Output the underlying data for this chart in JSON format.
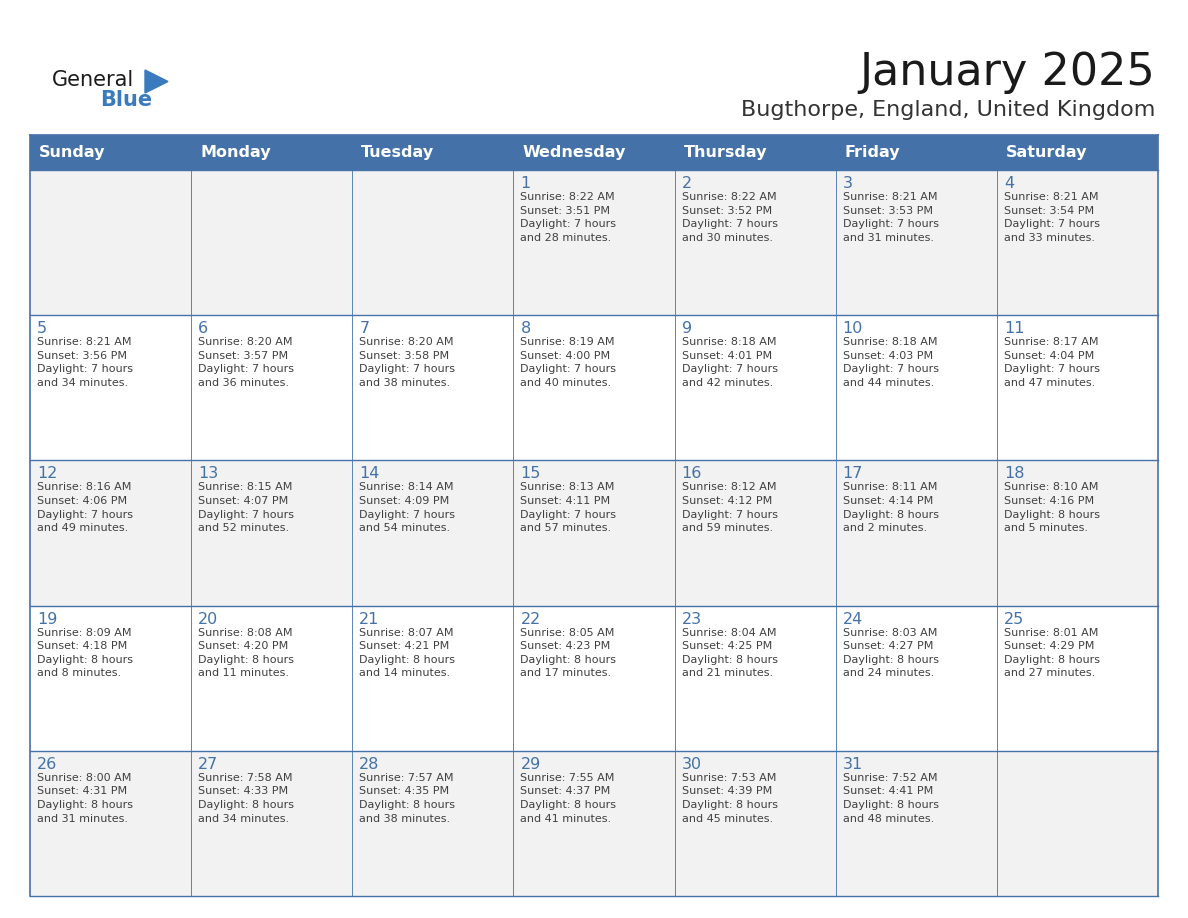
{
  "title": "January 2025",
  "subtitle": "Bugthorpe, England, United Kingdom",
  "days_of_week": [
    "Sunday",
    "Monday",
    "Tuesday",
    "Wednesday",
    "Thursday",
    "Friday",
    "Saturday"
  ],
  "header_bg": "#4472a8",
  "header_text": "#ffffff",
  "row_bg_odd": "#f2f2f2",
  "row_bg_even": "#ffffff",
  "border_color": "#4472a8",
  "inner_border_color": "#4472a8",
  "day_number_color": "#4472a8",
  "cell_text_color": "#404040",
  "title_color": "#1a1a1a",
  "subtitle_color": "#333333",
  "logo_general_color": "#1a1a1a",
  "logo_blue_color": "#3a7abf",
  "logo_triangle_color": "#3a7abf",
  "calendar_data": [
    [
      {
        "day": "",
        "info": ""
      },
      {
        "day": "",
        "info": ""
      },
      {
        "day": "",
        "info": ""
      },
      {
        "day": "1",
        "info": "Sunrise: 8:22 AM\nSunset: 3:51 PM\nDaylight: 7 hours\nand 28 minutes."
      },
      {
        "day": "2",
        "info": "Sunrise: 8:22 AM\nSunset: 3:52 PM\nDaylight: 7 hours\nand 30 minutes."
      },
      {
        "day": "3",
        "info": "Sunrise: 8:21 AM\nSunset: 3:53 PM\nDaylight: 7 hours\nand 31 minutes."
      },
      {
        "day": "4",
        "info": "Sunrise: 8:21 AM\nSunset: 3:54 PM\nDaylight: 7 hours\nand 33 minutes."
      }
    ],
    [
      {
        "day": "5",
        "info": "Sunrise: 8:21 AM\nSunset: 3:56 PM\nDaylight: 7 hours\nand 34 minutes."
      },
      {
        "day": "6",
        "info": "Sunrise: 8:20 AM\nSunset: 3:57 PM\nDaylight: 7 hours\nand 36 minutes."
      },
      {
        "day": "7",
        "info": "Sunrise: 8:20 AM\nSunset: 3:58 PM\nDaylight: 7 hours\nand 38 minutes."
      },
      {
        "day": "8",
        "info": "Sunrise: 8:19 AM\nSunset: 4:00 PM\nDaylight: 7 hours\nand 40 minutes."
      },
      {
        "day": "9",
        "info": "Sunrise: 8:18 AM\nSunset: 4:01 PM\nDaylight: 7 hours\nand 42 minutes."
      },
      {
        "day": "10",
        "info": "Sunrise: 8:18 AM\nSunset: 4:03 PM\nDaylight: 7 hours\nand 44 minutes."
      },
      {
        "day": "11",
        "info": "Sunrise: 8:17 AM\nSunset: 4:04 PM\nDaylight: 7 hours\nand 47 minutes."
      }
    ],
    [
      {
        "day": "12",
        "info": "Sunrise: 8:16 AM\nSunset: 4:06 PM\nDaylight: 7 hours\nand 49 minutes."
      },
      {
        "day": "13",
        "info": "Sunrise: 8:15 AM\nSunset: 4:07 PM\nDaylight: 7 hours\nand 52 minutes."
      },
      {
        "day": "14",
        "info": "Sunrise: 8:14 AM\nSunset: 4:09 PM\nDaylight: 7 hours\nand 54 minutes."
      },
      {
        "day": "15",
        "info": "Sunrise: 8:13 AM\nSunset: 4:11 PM\nDaylight: 7 hours\nand 57 minutes."
      },
      {
        "day": "16",
        "info": "Sunrise: 8:12 AM\nSunset: 4:12 PM\nDaylight: 7 hours\nand 59 minutes."
      },
      {
        "day": "17",
        "info": "Sunrise: 8:11 AM\nSunset: 4:14 PM\nDaylight: 8 hours\nand 2 minutes."
      },
      {
        "day": "18",
        "info": "Sunrise: 8:10 AM\nSunset: 4:16 PM\nDaylight: 8 hours\nand 5 minutes."
      }
    ],
    [
      {
        "day": "19",
        "info": "Sunrise: 8:09 AM\nSunset: 4:18 PM\nDaylight: 8 hours\nand 8 minutes."
      },
      {
        "day": "20",
        "info": "Sunrise: 8:08 AM\nSunset: 4:20 PM\nDaylight: 8 hours\nand 11 minutes."
      },
      {
        "day": "21",
        "info": "Sunrise: 8:07 AM\nSunset: 4:21 PM\nDaylight: 8 hours\nand 14 minutes."
      },
      {
        "day": "22",
        "info": "Sunrise: 8:05 AM\nSunset: 4:23 PM\nDaylight: 8 hours\nand 17 minutes."
      },
      {
        "day": "23",
        "info": "Sunrise: 8:04 AM\nSunset: 4:25 PM\nDaylight: 8 hours\nand 21 minutes."
      },
      {
        "day": "24",
        "info": "Sunrise: 8:03 AM\nSunset: 4:27 PM\nDaylight: 8 hours\nand 24 minutes."
      },
      {
        "day": "25",
        "info": "Sunrise: 8:01 AM\nSunset: 4:29 PM\nDaylight: 8 hours\nand 27 minutes."
      }
    ],
    [
      {
        "day": "26",
        "info": "Sunrise: 8:00 AM\nSunset: 4:31 PM\nDaylight: 8 hours\nand 31 minutes."
      },
      {
        "day": "27",
        "info": "Sunrise: 7:58 AM\nSunset: 4:33 PM\nDaylight: 8 hours\nand 34 minutes."
      },
      {
        "day": "28",
        "info": "Sunrise: 7:57 AM\nSunset: 4:35 PM\nDaylight: 8 hours\nand 38 minutes."
      },
      {
        "day": "29",
        "info": "Sunrise: 7:55 AM\nSunset: 4:37 PM\nDaylight: 8 hours\nand 41 minutes."
      },
      {
        "day": "30",
        "info": "Sunrise: 7:53 AM\nSunset: 4:39 PM\nDaylight: 8 hours\nand 45 minutes."
      },
      {
        "day": "31",
        "info": "Sunrise: 7:52 AM\nSunset: 4:41 PM\nDaylight: 8 hours\nand 48 minutes."
      },
      {
        "day": "",
        "info": ""
      }
    ]
  ]
}
